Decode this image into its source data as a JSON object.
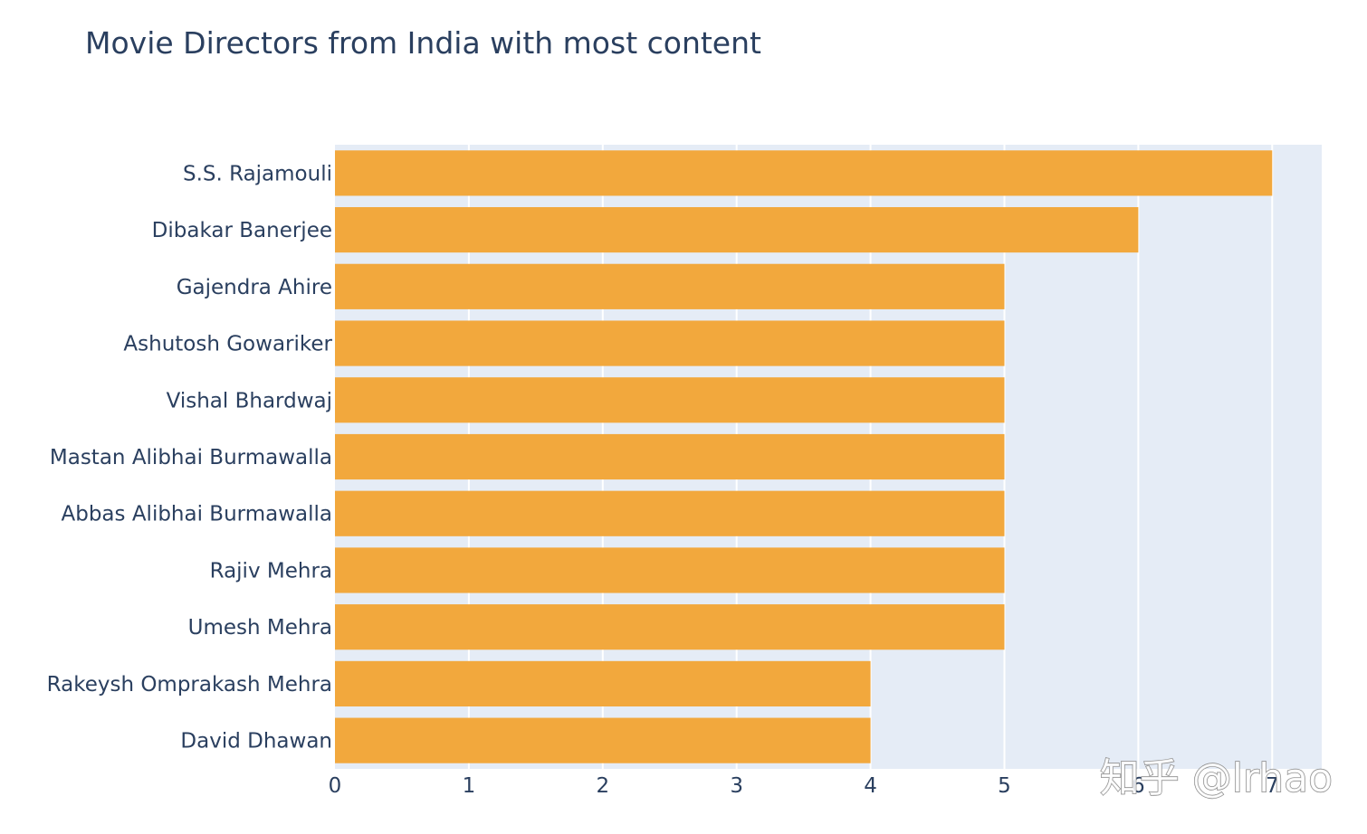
{
  "chart_data": {
    "type": "bar",
    "orientation": "horizontal",
    "title": "Movie Directors from India with most content",
    "categories": [
      "S.S. Rajamouli",
      "Dibakar Banerjee",
      "Gajendra Ahire",
      "Ashutosh Gowariker",
      "Vishal Bhardwaj",
      "Mastan Alibhai Burmawalla",
      "Abbas Alibhai Burmawalla",
      "Rajiv Mehra",
      "Umesh Mehra",
      "Rakeysh Omprakash Mehra",
      "David Dhawan"
    ],
    "values": [
      7,
      6,
      5,
      5,
      5,
      5,
      5,
      5,
      5,
      4,
      4
    ],
    "xlim": [
      0,
      7.37
    ],
    "x_ticks": [
      "0",
      "1",
      "2",
      "3",
      "4",
      "5",
      "6",
      "7"
    ],
    "grid": true,
    "bar_color": "#f2a83d",
    "plot_background": "#e5ecf6",
    "text_color": "#2a3f5f"
  },
  "watermark": "知乎 @lrhao"
}
